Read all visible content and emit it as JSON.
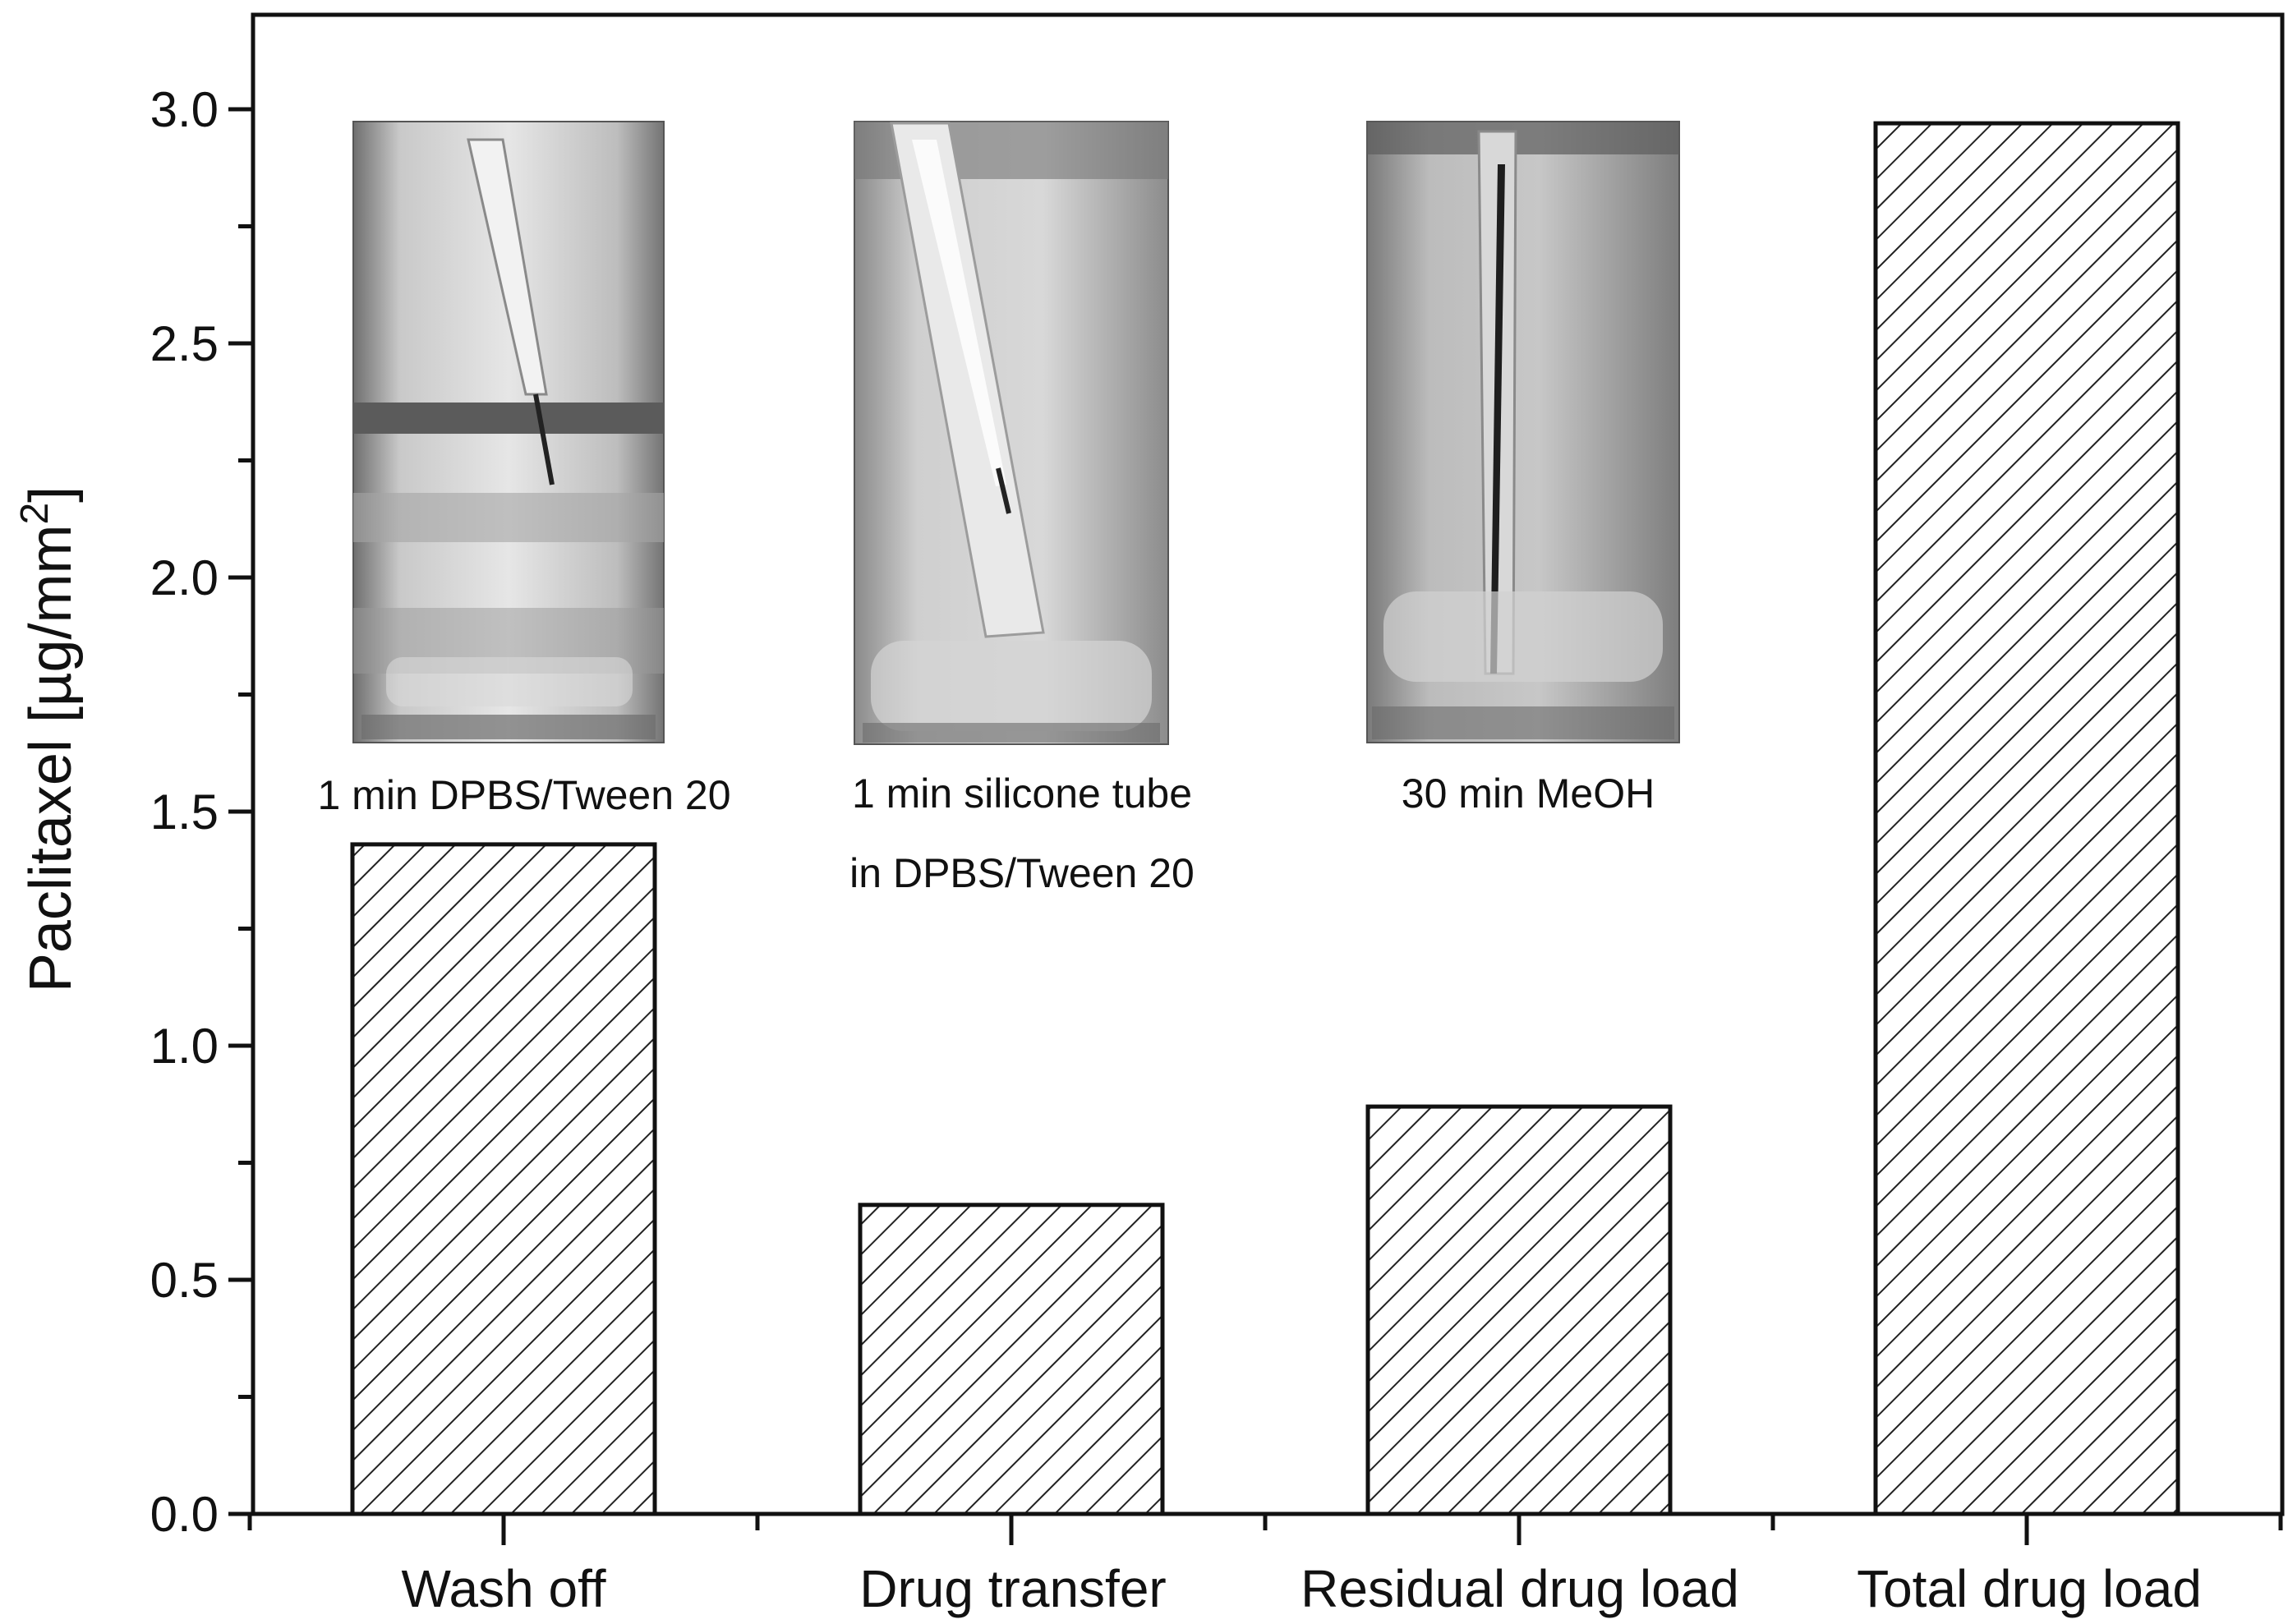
{
  "chart_data": {
    "type": "bar",
    "title": "",
    "xlabel": "",
    "ylabel": "Paclitaxel [µg/mm²]",
    "ylabel_main": "Paclitaxel [µg/mm",
    "ylabel_sup": "2",
    "ylabel_end": "]",
    "ylim": [
      0,
      3.2
    ],
    "yticks": [
      "0.0",
      "0.5",
      "1.0",
      "1.5",
      "2.0",
      "2.5",
      "3.0"
    ],
    "categories": [
      "Wash off",
      "Drug transfer",
      "Residual drug load",
      "Total drug load"
    ],
    "values": [
      1.43,
      0.66,
      0.87,
      2.97
    ],
    "bar_pattern": "diagonal-hatch",
    "grid": false,
    "legend": "none",
    "insets": [
      {
        "caption_lines": [
          "1 min DPBS/Tween 20"
        ],
        "content": "photo of coated balloon in vial of buffer"
      },
      {
        "caption_lines": [
          "1 min silicone tube",
          "in DPBS/Tween 20"
        ],
        "content": "photo of balloon inside silicone tube in vial"
      },
      {
        "caption_lines": [
          "30 min MeOH"
        ],
        "content": "photo of balloon in vial of methanol"
      }
    ]
  }
}
